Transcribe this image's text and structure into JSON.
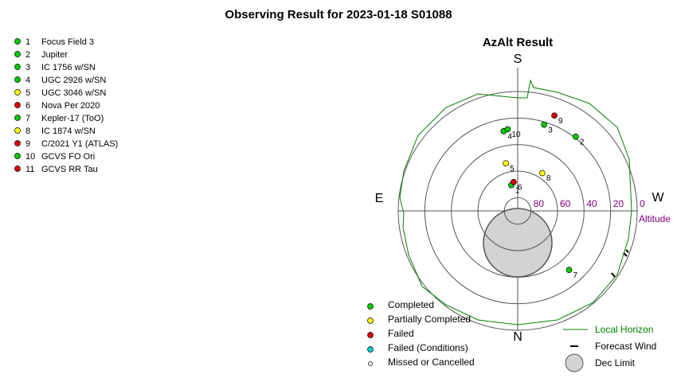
{
  "chart_data": {
    "type": "polar-sky",
    "title": "Observing Result for 2023-01-18 S01088",
    "subtitle": "AzAlt Result",
    "directions": {
      "top": "S",
      "bottom": "N",
      "left": "E",
      "right": "W"
    },
    "radial_label": "Altitude",
    "rlim": [
      90,
      0
    ],
    "rticks": [
      80,
      60,
      40,
      20,
      0
    ],
    "tick_color": "#800080",
    "targets": [
      {
        "id": "1",
        "name": "Focus Field 3",
        "color": "#00cc00",
        "az": 166,
        "alt": 70
      },
      {
        "id": "2",
        "name": "Jupiter",
        "color": "#00cc00",
        "az": 218,
        "alt": 19
      },
      {
        "id": "3",
        "name": "IC 1756 w/SN",
        "color": "#00cc00",
        "az": 197,
        "alt": 22
      },
      {
        "id": "4",
        "name": "UGC 2926 w/SN",
        "color": "#00cc00",
        "az": 170,
        "alt": 29
      },
      {
        "id": "5",
        "name": "UGC 3046 w/SN",
        "color": "#ffff00",
        "az": 166,
        "alt": 53
      },
      {
        "id": "6",
        "name": "Nova Per 2020",
        "color": "#dd0000",
        "az": 172,
        "alt": 68
      },
      {
        "id": "7",
        "name": "Kepler-17 (ToO)",
        "color": "#00cc00",
        "az": 319,
        "alt": 31
      },
      {
        "id": "8",
        "name": "IC 1874 w/SN",
        "color": "#ffff00",
        "az": 213,
        "alt": 56
      },
      {
        "id": "9",
        "name": "C/2021 Y1 (ATLAS)",
        "color": "#dd0000",
        "az": 201,
        "alt": 13
      },
      {
        "id": "10",
        "name": "GCVS FO Ori",
        "color": "#00cc00",
        "az": 173,
        "alt": 28
      },
      {
        "id": "11",
        "name": "GCVS RR Tau",
        "color": "#dd0000",
        "az": null,
        "alt": null
      }
    ],
    "status_legend": [
      {
        "name": "Completed",
        "color": "#00cc00"
      },
      {
        "name": "Partially Completed",
        "color": "#ffff00"
      },
      {
        "name": "Failed",
        "color": "#dd0000"
      },
      {
        "name": "Failed (Conditions)",
        "color": "#00cccc"
      },
      {
        "name": "Missed or Cancelled",
        "color": "#ffffff"
      }
    ],
    "horizon_label": "Local Horizon",
    "horizon_color": "#008000",
    "wind_label": "Forecast Wind",
    "dec_limit_label": "Dec Limit"
  }
}
